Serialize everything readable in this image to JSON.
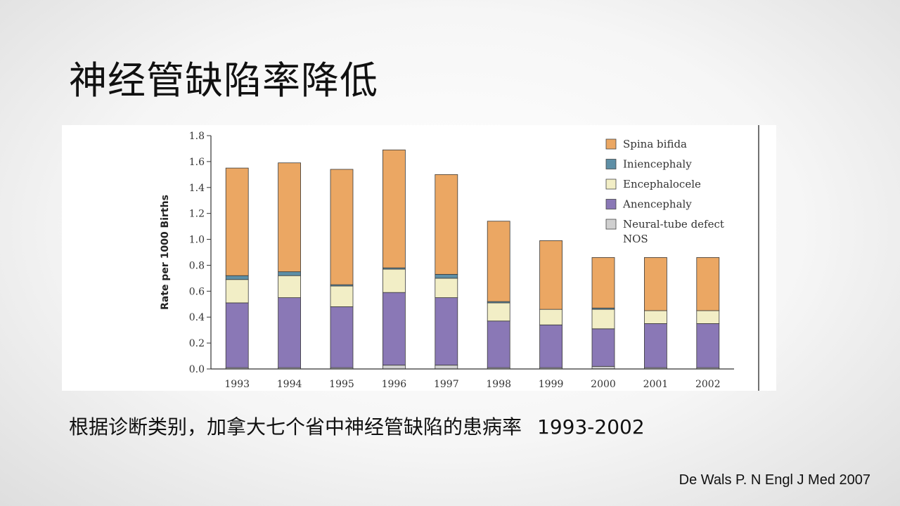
{
  "slide": {
    "title": "神经管缺陷率降低",
    "caption": "根据诊断类别，加拿大七个省中神经管缺陷的患病率",
    "caption_years": "1993-2002",
    "citation": "De Wals P. N Engl J Med 2007"
  },
  "chart_data": {
    "type": "bar",
    "stacked": true,
    "ylabel": "Rate per 1000 Births",
    "ylim": [
      0,
      1.8
    ],
    "yticks": [
      "0.0",
      "0.2",
      "0.4",
      "0.6",
      "0.8",
      "1.0",
      "1.2",
      "1.4",
      "1.6",
      "1.8"
    ],
    "categories": [
      "1993",
      "1994",
      "1995",
      "1996",
      "1997",
      "1998",
      "1999",
      "2000",
      "2001",
      "2002"
    ],
    "legend_position": "top-right",
    "series": [
      {
        "name": "Neural-tube defect NOS",
        "color": "#cfcfcf",
        "values": [
          0.01,
          0.01,
          0.01,
          0.03,
          0.03,
          0.01,
          0.01,
          0.02,
          0.01,
          0.01
        ]
      },
      {
        "name": "Anencephaly",
        "color": "#8a78b6",
        "values": [
          0.5,
          0.54,
          0.47,
          0.56,
          0.52,
          0.36,
          0.33,
          0.29,
          0.34,
          0.34
        ]
      },
      {
        "name": "Encephalocele",
        "color": "#f2eec6",
        "values": [
          0.18,
          0.17,
          0.16,
          0.18,
          0.15,
          0.14,
          0.12,
          0.15,
          0.1,
          0.1
        ]
      },
      {
        "name": "Iniencephaly",
        "color": "#5e8fa6",
        "values": [
          0.03,
          0.03,
          0.01,
          0.01,
          0.03,
          0.01,
          0.0,
          0.01,
          0.0,
          0.0
        ]
      },
      {
        "name": "Spina bifida",
        "color": "#eba763",
        "values": [
          0.83,
          0.84,
          0.89,
          0.91,
          0.77,
          0.62,
          0.53,
          0.39,
          0.41,
          0.41
        ]
      }
    ],
    "legend": [
      {
        "label": "Spina bifida",
        "color": "#eba763"
      },
      {
        "label": "Iniencephaly",
        "color": "#5e8fa6"
      },
      {
        "label": "Encephalocele",
        "color": "#f2eec6"
      },
      {
        "label": "Anencephaly",
        "color": "#8a78b6"
      },
      {
        "label_lines": [
          "Neural-tube defect",
          "NOS"
        ],
        "color": "#cfcfcf"
      }
    ]
  }
}
